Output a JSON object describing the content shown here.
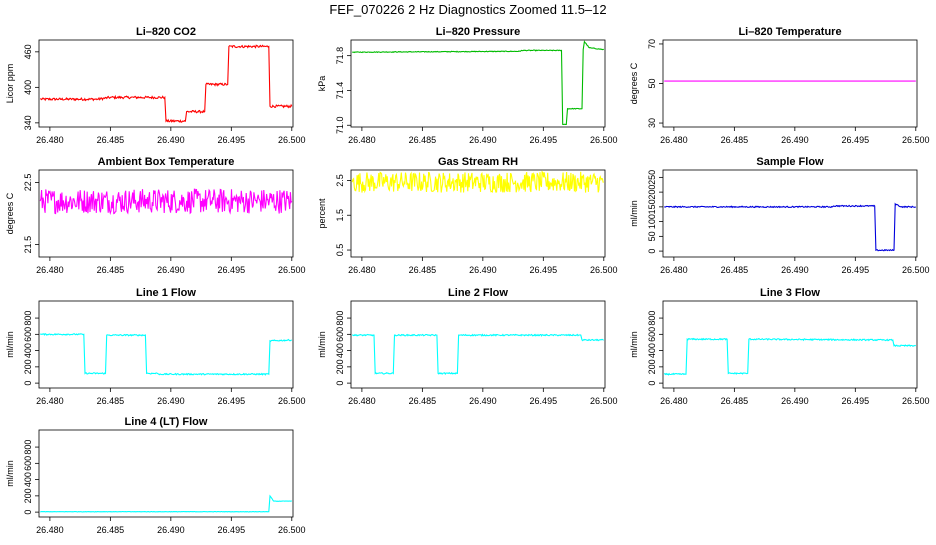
{
  "figure": {
    "title": "FEF_070226  2 Hz Diagnostics Zoomed 11.5–12"
  },
  "chart_data": [
    {
      "type": "line",
      "title": "Li–820 CO2",
      "ylabel": "Licor ppm",
      "color": "#ff0000",
      "xlim": [
        26.4791,
        26.5001
      ],
      "ylim": [
        333,
        480
      ],
      "xticks": [
        "26.480",
        "26.485",
        "26.490",
        "26.495",
        "26.500"
      ],
      "yticks": [
        {
          "v": 340,
          "l": "340"
        },
        {
          "v": 400,
          "l": "400"
        },
        {
          "v": 460,
          "l": "460"
        }
      ],
      "series": [
        {
          "noise": 2,
          "points": [
            [
              26.4792,
              380
            ],
            [
              26.484,
              380
            ],
            [
              26.485,
              383
            ],
            [
              26.4895,
              383
            ],
            [
              26.4896,
              343
            ],
            [
              26.4912,
              343
            ],
            [
              26.4913,
              359
            ],
            [
              26.4928,
              359
            ],
            [
              26.4929,
              405
            ],
            [
              26.4947,
              405
            ],
            [
              26.4948,
              469
            ],
            [
              26.4981,
              469
            ],
            [
              26.4982,
              368
            ],
            [
              26.5,
              368
            ]
          ]
        }
      ]
    },
    {
      "type": "line",
      "title": "Li–820 Pressure",
      "ylabel": "kPa",
      "color": "#00bb00",
      "xlim": [
        26.4791,
        26.5001
      ],
      "ylim": [
        70.98,
        71.98
      ],
      "xticks": [
        "26.480",
        "26.485",
        "26.490",
        "26.495",
        "26.500"
      ],
      "yticks": [
        {
          "v": 71.0,
          "l": "71.0"
        },
        {
          "v": 71.4,
          "l": "71.4"
        },
        {
          "v": 71.8,
          "l": "71.8"
        }
      ],
      "series": [
        {
          "noise": 0.004,
          "points": [
            [
              26.4792,
              71.84
            ],
            [
              26.486,
              71.845
            ],
            [
              26.4931,
              71.85
            ],
            [
              26.4932,
              71.86
            ],
            [
              26.4965,
              71.86
            ],
            [
              26.4966,
              71.01
            ],
            [
              26.4969,
              71.01
            ],
            [
              26.497,
              71.19
            ],
            [
              26.4982,
              71.19
            ],
            [
              26.4983,
              71.87
            ],
            [
              26.4984,
              71.96
            ],
            [
              26.4988,
              71.89
            ],
            [
              26.5,
              71.87
            ]
          ]
        }
      ]
    },
    {
      "type": "line",
      "title": "Li–820 Temperature",
      "ylabel": "degrees C",
      "color": "#ff00ff",
      "xlim": [
        26.4791,
        26.5001
      ],
      "ylim": [
        28,
        72
      ],
      "xticks": [
        "26.480",
        "26.485",
        "26.490",
        "26.495",
        "26.500"
      ],
      "yticks": [
        {
          "v": 30,
          "l": "30"
        },
        {
          "v": 50,
          "l": "50"
        },
        {
          "v": 70,
          "l": "70"
        }
      ],
      "series": [
        {
          "noise": 0,
          "points": [
            [
              26.4792,
              51.2
            ],
            [
              26.5,
              51.2
            ]
          ]
        }
      ]
    },
    {
      "type": "line",
      "title": "Ambient Box Temperature",
      "ylabel": "degrees C",
      "color": "#ff00ff",
      "xlim": [
        26.4791,
        26.5001
      ],
      "ylim": [
        21.3,
        22.7
      ],
      "xticks": [
        "26.480",
        "26.485",
        "26.490",
        "26.495",
        "26.500"
      ],
      "yticks": [
        {
          "v": 21.5,
          "l": "21.5"
        },
        {
          "v": 22.5,
          "l": "22.5"
        }
      ],
      "series": [
        {
          "noise": 0.2,
          "points": [
            [
              26.4792,
              22.2
            ],
            [
              26.5,
              22.2
            ]
          ]
        }
      ]
    },
    {
      "type": "line",
      "title": "Gas Stream RH",
      "ylabel": "percent",
      "color": "#ffff00",
      "xlim": [
        26.4791,
        26.5001
      ],
      "ylim": [
        0.3,
        2.8
      ],
      "xticks": [
        "26.480",
        "26.485",
        "26.490",
        "26.495",
        "26.500"
      ],
      "yticks": [
        {
          "v": 0.5,
          "l": "0.5"
        },
        {
          "v": 1.5,
          "l": "1.5"
        },
        {
          "v": 2.5,
          "l": "2.5"
        }
      ],
      "series": [
        {
          "noise": 0.3,
          "points": [
            [
              26.4792,
              2.45
            ],
            [
              26.5,
              2.45
            ]
          ]
        }
      ]
    },
    {
      "type": "line",
      "title": "Sample Flow",
      "ylabel": "ml/min",
      "color": "#0000dd",
      "xlim": [
        26.4791,
        26.5001
      ],
      "ylim": [
        -20,
        275
      ],
      "xticks": [
        "26.480",
        "26.485",
        "26.490",
        "26.495",
        "26.500"
      ],
      "yticks": [
        {
          "v": 0,
          "l": "0"
        },
        {
          "v": 50,
          "l": "50"
        },
        {
          "v": 100,
          "l": "100"
        },
        {
          "v": 150,
          "l": "150"
        },
        {
          "v": 200,
          "l": "200"
        },
        {
          "v": 250,
          "l": "250"
        }
      ],
      "series": [
        {
          "noise": 2,
          "points": [
            [
              26.4792,
              150
            ],
            [
              26.4931,
              150
            ],
            [
              26.4932,
              153
            ],
            [
              26.4966,
              153
            ],
            [
              26.4967,
              3
            ],
            [
              26.4982,
              3
            ],
            [
              26.4983,
              160
            ],
            [
              26.4988,
              150
            ],
            [
              26.5,
              150
            ]
          ]
        }
      ]
    },
    {
      "type": "line",
      "title": "Line 1 Flow",
      "ylabel": "ml/min",
      "color": "#00ffff",
      "xlim": [
        26.4791,
        26.5001
      ],
      "ylim": [
        -60,
        1010
      ],
      "xticks": [
        "26.480",
        "26.485",
        "26.490",
        "26.495",
        "26.500"
      ],
      "yticks": [
        {
          "v": 0,
          "l": "0"
        },
        {
          "v": 200,
          "l": "200"
        },
        {
          "v": 400,
          "l": "400"
        },
        {
          "v": 600,
          "l": "600"
        },
        {
          "v": 800,
          "l": "800"
        }
      ],
      "series": [
        {
          "noise": 8,
          "points": [
            [
              26.4792,
              600
            ],
            [
              26.4828,
              600
            ],
            [
              26.4829,
              120
            ],
            [
              26.4846,
              120
            ],
            [
              26.4847,
              590
            ],
            [
              26.4879,
              590
            ],
            [
              26.488,
              120
            ],
            [
              26.4889,
              120
            ],
            [
              26.489,
              110
            ],
            [
              26.4981,
              110
            ],
            [
              26.4982,
              520
            ],
            [
              26.5,
              530
            ]
          ]
        }
      ]
    },
    {
      "type": "line",
      "title": "Line 2 Flow",
      "ylabel": "ml/min",
      "color": "#00ffff",
      "xlim": [
        26.4791,
        26.5001
      ],
      "ylim": [
        -60,
        1010
      ],
      "xticks": [
        "26.480",
        "26.485",
        "26.490",
        "26.495",
        "26.500"
      ],
      "yticks": [
        {
          "v": 0,
          "l": "0"
        },
        {
          "v": 200,
          "l": "200"
        },
        {
          "v": 400,
          "l": "400"
        },
        {
          "v": 600,
          "l": "600"
        },
        {
          "v": 800,
          "l": "800"
        }
      ],
      "series": [
        {
          "noise": 8,
          "points": [
            [
              26.4792,
              590
            ],
            [
              26.481,
              590
            ],
            [
              26.4811,
              120
            ],
            [
              26.4826,
              120
            ],
            [
              26.4827,
              590
            ],
            [
              26.4862,
              590
            ],
            [
              26.4863,
              120
            ],
            [
              26.4879,
              120
            ],
            [
              26.488,
              590
            ],
            [
              26.4981,
              590
            ],
            [
              26.4982,
              530
            ],
            [
              26.5,
              530
            ]
          ]
        }
      ]
    },
    {
      "type": "line",
      "title": "Line 3 Flow",
      "ylabel": "ml/min",
      "color": "#00ffff",
      "xlim": [
        26.4791,
        26.5001
      ],
      "ylim": [
        -60,
        1010
      ],
      "xticks": [
        "26.480",
        "26.485",
        "26.490",
        "26.495",
        "26.500"
      ],
      "yticks": [
        {
          "v": 0,
          "l": "0"
        },
        {
          "v": 200,
          "l": "200"
        },
        {
          "v": 400,
          "l": "400"
        },
        {
          "v": 600,
          "l": "600"
        },
        {
          "v": 800,
          "l": "800"
        }
      ],
      "series": [
        {
          "noise": 8,
          "points": [
            [
              26.4792,
              110
            ],
            [
              26.481,
              110
            ],
            [
              26.4811,
              540
            ],
            [
              26.4844,
              540
            ],
            [
              26.4845,
              120
            ],
            [
              26.4861,
              120
            ],
            [
              26.4862,
              540
            ],
            [
              26.4981,
              530
            ],
            [
              26.4982,
              460
            ],
            [
              26.5,
              460
            ]
          ]
        }
      ]
    },
    {
      "type": "line",
      "title": "Line 4 (LT) Flow",
      "ylabel": "ml/min",
      "color": "#00ffff",
      "xlim": [
        26.4791,
        26.5001
      ],
      "ylim": [
        -60,
        1010
      ],
      "xticks": [
        "26.480",
        "26.485",
        "26.490",
        "26.495",
        "26.500"
      ],
      "yticks": [
        {
          "v": 0,
          "l": "0"
        },
        {
          "v": 200,
          "l": "200"
        },
        {
          "v": 400,
          "l": "400"
        },
        {
          "v": 600,
          "l": "600"
        },
        {
          "v": 800,
          "l": "800"
        }
      ],
      "series": [
        {
          "noise": 2,
          "points": [
            [
              26.4792,
              5
            ],
            [
              26.4981,
              5
            ],
            [
              26.4982,
              200
            ],
            [
              26.4985,
              135
            ],
            [
              26.5,
              135
            ]
          ]
        }
      ]
    }
  ]
}
